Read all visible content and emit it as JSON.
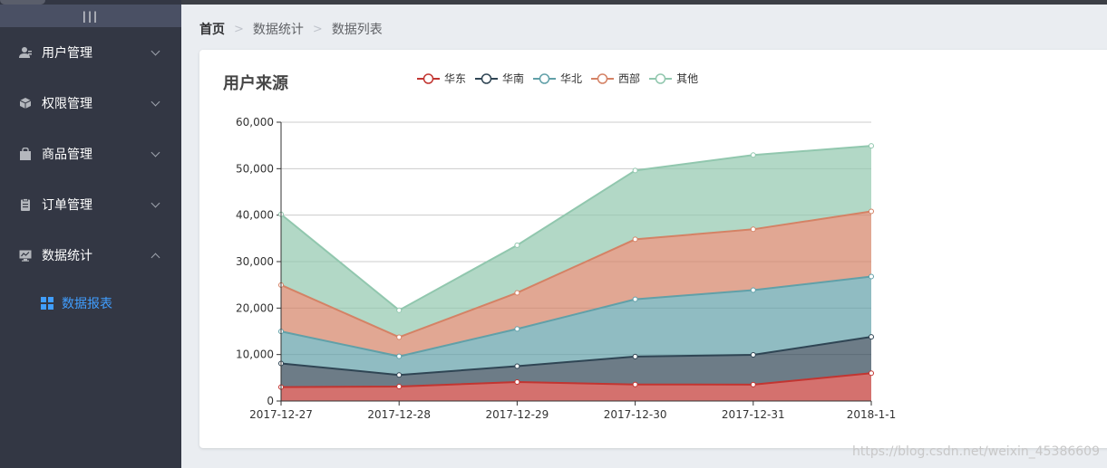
{
  "sidebar": {
    "toggle_label": "|||",
    "menus": [
      {
        "label": "用户管理",
        "icon": "user-icon",
        "expanded": false
      },
      {
        "label": "权限管理",
        "icon": "cube-icon",
        "expanded": false
      },
      {
        "label": "商品管理",
        "icon": "shopping-bag-icon",
        "expanded": false
      },
      {
        "label": "订单管理",
        "icon": "clipboard-icon",
        "expanded": false
      },
      {
        "label": "数据统计",
        "icon": "monitor-chart-icon",
        "expanded": true
      }
    ],
    "submenu": {
      "label": "数据报表",
      "icon": "grid-icon",
      "active": true
    }
  },
  "breadcrumb": {
    "items": [
      "首页",
      "数据统计",
      "数据列表"
    ]
  },
  "colors": {
    "sidebar_bg": "#333744",
    "active_text": "#409eff"
  },
  "watermark": "https://blog.csdn.net/weixin_45386609",
  "chart_data": {
    "type": "area",
    "stacked": true,
    "title": "用户来源",
    "categories": [
      "2017-12-27",
      "2017-12-28",
      "2017-12-29",
      "2017-12-30",
      "2017-12-31",
      "2018-1-1"
    ],
    "ylim": [
      0,
      60000
    ],
    "y_ticks": [
      "0",
      "10,000",
      "20,000",
      "30,000",
      "40,000",
      "50,000",
      "60,000"
    ],
    "grid": true,
    "legend_position": "top",
    "series": [
      {
        "name": "华东",
        "color": "#c23531",
        "values": [
          2999,
          3111,
          4100,
          3565,
          3528,
          6000
        ]
      },
      {
        "name": "华南",
        "color": "#2f4554",
        "values": [
          5090,
          2500,
          3400,
          6000,
          6400,
          7800
        ]
      },
      {
        "name": "华北",
        "color": "#61a0a8",
        "values": [
          6888,
          4000,
          8010,
          12321,
          13928,
          12984
        ]
      },
      {
        "name": "西部",
        "color": "#d48265",
        "values": [
          9991,
          4130,
          7777,
          12903,
          13098,
          14028
        ]
      },
      {
        "name": "其他",
        "color": "#91c7ae",
        "values": [
          15212,
          5800,
          10241,
          14821,
          15982,
          14091
        ]
      }
    ]
  }
}
